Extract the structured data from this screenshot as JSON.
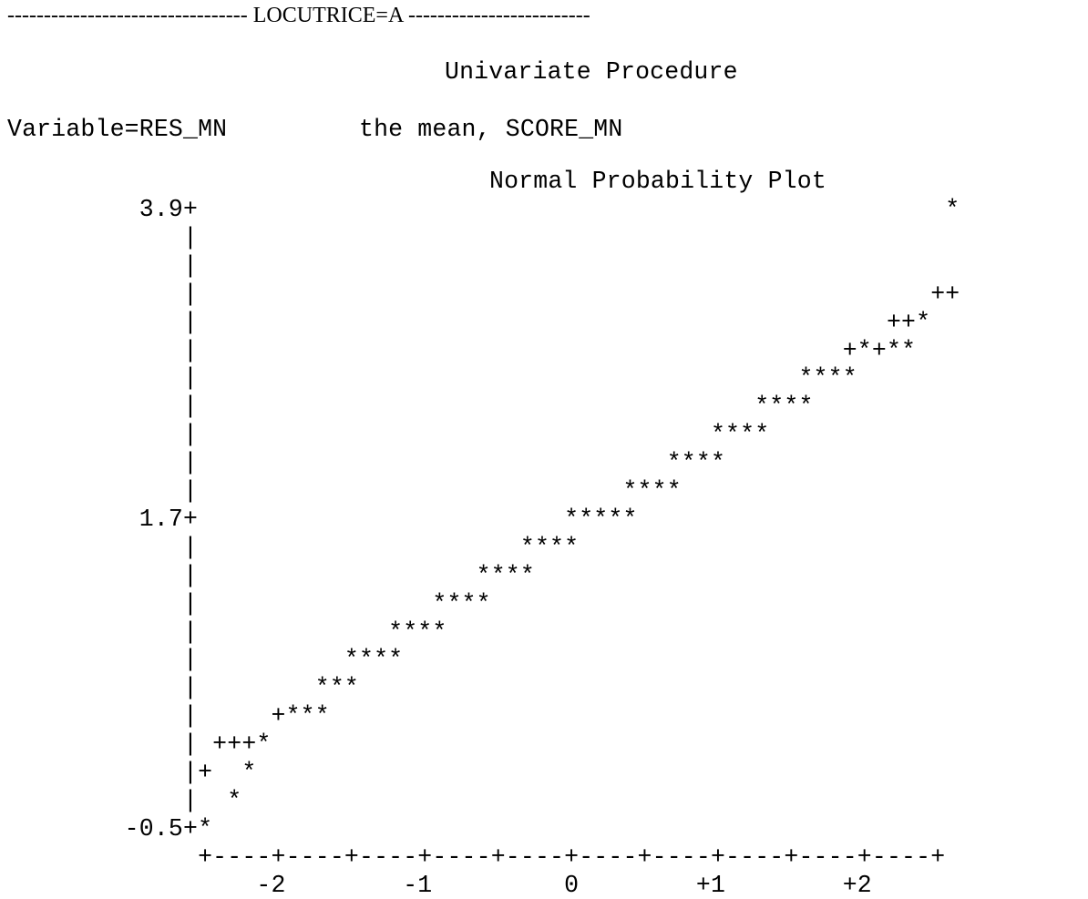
{
  "header": {
    "dash_left": "---------------------------------",
    "group_label": "LOCUTRICE=A",
    "dash_right": "-------------------------"
  },
  "procedure_title": "Univariate Procedure",
  "variable_line": "Variable=RES_MN         the mean, SCORE_MN",
  "plot": {
    "title": "Normal Probability Plot",
    "lines": [
      "         3.9+                                                   *",
      "            |",
      "            |",
      "            |                                                  ++",
      "            |                                               ++*",
      "            |                                            +*+**",
      "            |                                         ****",
      "            |                                      ****",
      "            |                                   ****",
      "            |                                ****",
      "            |                             ****",
      "         1.7+                         *****",
      "            |                      ****",
      "            |                   ****",
      "            |                ****",
      "            |             ****",
      "            |          ****",
      "            |        ***",
      "            |     +***",
      "            | +++*",
      "            |+  *",
      "            |  *",
      "        -0.5+*",
      "             +----+----+----+----+----+----+----+----+----+----+",
      "                 -2        -1         0        +1        +2"
    ]
  },
  "chart_data": {
    "type": "scatter",
    "title": "Normal Probability Plot",
    "xlabel": "",
    "ylabel": "",
    "x_ticks": [
      "-2",
      "-1",
      "0",
      "+1",
      "+2"
    ],
    "y_ticks": [
      "-0.5",
      "1.7",
      "3.9"
    ],
    "ylim": [
      -0.5,
      3.9
    ],
    "series": [
      {
        "points": [
          [
            -2.5,
            -0.5
          ],
          [
            -2.25,
            -0.3
          ],
          [
            -2.15,
            -0.1
          ],
          [
            -2.1,
            0.1
          ],
          [
            -1.9,
            0.3
          ],
          [
            -1.7,
            0.3
          ],
          [
            -1.65,
            0.5
          ],
          [
            -1.5,
            0.7
          ],
          [
            -1.3,
            0.7
          ],
          [
            -1.25,
            0.9
          ],
          [
            -1.05,
            0.9
          ],
          [
            -0.95,
            1.1
          ],
          [
            -0.75,
            1.1
          ],
          [
            -0.65,
            1.3
          ],
          [
            -0.45,
            1.3
          ],
          [
            -0.3,
            1.5
          ],
          [
            -0.15,
            1.5
          ],
          [
            0.0,
            1.7
          ],
          [
            0.3,
            1.7
          ],
          [
            0.4,
            1.9
          ],
          [
            0.65,
            1.9
          ],
          [
            0.7,
            2.1
          ],
          [
            0.95,
            2.1
          ],
          [
            1.0,
            2.3
          ],
          [
            1.25,
            2.3
          ],
          [
            1.3,
            2.5
          ],
          [
            1.55,
            2.5
          ],
          [
            1.6,
            2.7
          ],
          [
            1.85,
            2.7
          ],
          [
            1.95,
            2.9
          ],
          [
            2.15,
            2.9
          ],
          [
            2.3,
            3.1
          ],
          [
            2.5,
            3.9
          ]
        ]
      }
    ]
  }
}
